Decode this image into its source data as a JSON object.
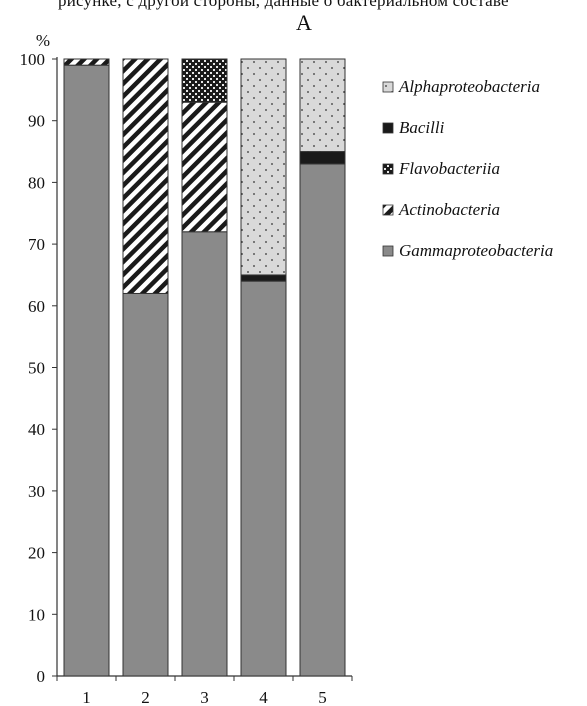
{
  "header": {
    "caption": "рисунке, с другой стороны, данные о бактериальном составе",
    "panel_label": "A"
  },
  "chart_data": {
    "type": "bar",
    "stacked": true,
    "title": "A",
    "ylabel": "%",
    "xlabel": "",
    "ylim": [
      0,
      100
    ],
    "yticks": [
      0,
      10,
      20,
      30,
      40,
      50,
      60,
      70,
      80,
      90,
      100
    ],
    "categories": [
      "1",
      "2",
      "3",
      "4",
      "5"
    ],
    "grid": false,
    "legend_position": "right",
    "series": [
      {
        "name": "Gammaproteobacteria",
        "pattern": "solid-gray",
        "color": "#8a8a8a",
        "values": [
          99,
          62,
          72,
          64,
          83
        ]
      },
      {
        "name": "Actinobacteria",
        "pattern": "diagonal-stripes",
        "color": "#1a1a1a",
        "values": [
          1,
          38,
          21,
          0,
          0
        ]
      },
      {
        "name": "Flavobacteriia",
        "pattern": "checker-dots",
        "color": "#1a1a1a",
        "values": [
          0,
          0,
          7,
          0,
          0
        ]
      },
      {
        "name": "Bacilli",
        "pattern": "solid-black",
        "color": "#1a1a1a",
        "values": [
          0,
          0,
          0,
          1,
          2
        ]
      },
      {
        "name": "Alphaproteobacteria",
        "pattern": "dotted-light",
        "color": "#d8d8d8",
        "values": [
          0,
          0,
          0,
          35,
          15
        ]
      }
    ],
    "legend_order": [
      "Alphaproteobacteria",
      "Bacilli",
      "Flavobacteriia",
      "Actinobacteria",
      "Gammaproteobacteria"
    ]
  }
}
